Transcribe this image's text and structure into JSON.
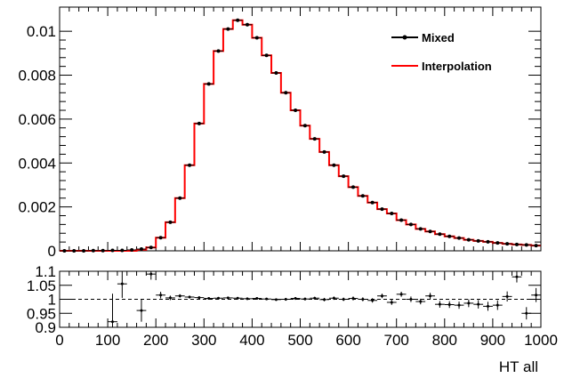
{
  "chart_data": [
    {
      "type": "line",
      "panel": "distribution",
      "xlim": [
        0,
        1000
      ],
      "ylim": [
        0,
        0.0111
      ],
      "yticks": [
        0,
        0.002,
        0.004,
        0.006,
        0.008,
        0.01
      ],
      "ytick_labels": [
        "0",
        "0.002",
        "0.004",
        "0.006",
        "0.008",
        "0.01"
      ],
      "legend_placement": "top-right",
      "legend": [
        "Mixed",
        "Interpolation"
      ],
      "bin_width": 20,
      "x": [
        10,
        30,
        50,
        70,
        90,
        110,
        130,
        150,
        170,
        190,
        210,
        230,
        250,
        270,
        290,
        310,
        330,
        350,
        370,
        390,
        410,
        430,
        450,
        470,
        490,
        510,
        530,
        550,
        570,
        590,
        610,
        630,
        650,
        670,
        690,
        710,
        730,
        750,
        770,
        790,
        810,
        830,
        850,
        870,
        890,
        910,
        930,
        950,
        970,
        990
      ],
      "series": [
        {
          "name": "Mixed",
          "color": "#000000",
          "values": [
            0,
            0,
            0,
            1e-05,
            1e-05,
            2e-05,
            2e-05,
            4e-05,
            8e-05,
            0.00015,
            0.0006,
            0.0013,
            0.0024,
            0.0039,
            0.0058,
            0.0076,
            0.0091,
            0.0101,
            0.0105,
            0.0103,
            0.0097,
            0.0089,
            0.0081,
            0.0072,
            0.0064,
            0.0057,
            0.0051,
            0.0045,
            0.0039,
            0.0034,
            0.0029,
            0.0025,
            0.0022,
            0.0019,
            0.0017,
            0.0014,
            0.0012,
            0.001,
            0.00088,
            0.00076,
            0.00066,
            0.00058,
            0.0005,
            0.00045,
            0.00041,
            0.00036,
            0.00032,
            0.00029,
            0.00027,
            0.00024
          ]
        },
        {
          "name": "Interpolation",
          "color": "#ff0000",
          "values": [
            0,
            0,
            0,
            0,
            0,
            0,
            0,
            0,
            5e-05,
            0.00015,
            0.0006,
            0.0013,
            0.0024,
            0.0039,
            0.0058,
            0.0076,
            0.0091,
            0.0101,
            0.0105,
            0.0103,
            0.0097,
            0.0089,
            0.0081,
            0.0072,
            0.0064,
            0.0057,
            0.0051,
            0.0045,
            0.0039,
            0.0034,
            0.0029,
            0.0025,
            0.0022,
            0.0019,
            0.0017,
            0.0014,
            0.0012,
            0.001,
            0.00088,
            0.00076,
            0.00066,
            0.00058,
            0.0005,
            0.00045,
            0.00041,
            0.00036,
            0.00032,
            0.00029,
            0.00027,
            0.00024
          ]
        }
      ]
    },
    {
      "type": "scatter",
      "panel": "ratio",
      "xlim": [
        0,
        1000
      ],
      "ylim": [
        0.9,
        1.1
      ],
      "yticks": [
        0.9,
        0.95,
        1,
        1.05,
        1.1
      ],
      "ytick_labels": [
        "0.9",
        "0.95",
        "1",
        "1.05",
        "1.1"
      ],
      "xticks": [
        0,
        100,
        200,
        300,
        400,
        500,
        600,
        700,
        800,
        900,
        1000
      ],
      "xtick_labels": [
        "0",
        "100",
        "200",
        "300",
        "400",
        "500",
        "600",
        "700",
        "800",
        "900",
        "1000"
      ],
      "xlabel": "HT  all",
      "reference_line": 1.0,
      "x": [
        110,
        130,
        170,
        190,
        210,
        230,
        250,
        270,
        290,
        310,
        330,
        350,
        370,
        390,
        410,
        430,
        450,
        470,
        490,
        510,
        530,
        550,
        570,
        590,
        610,
        630,
        650,
        670,
        690,
        710,
        730,
        750,
        770,
        790,
        810,
        830,
        850,
        870,
        890,
        910,
        930,
        950,
        970,
        990
      ],
      "values": [
        0.92,
        1.055,
        0.96,
        1.09,
        1.015,
        1.005,
        1.012,
        1.008,
        1.006,
        1.003,
        1.004,
        1.005,
        1.004,
        1.002,
        1.003,
        1.001,
        0.999,
        1.0,
        1.003,
        1.001,
        1.004,
        0.999,
        1.004,
        1.0,
        1.003,
        1.0,
        0.996,
        1.012,
        0.989,
        1.018,
        1.0,
        0.992,
        1.012,
        0.982,
        0.981,
        0.979,
        0.986,
        0.982,
        0.975,
        0.979,
        1.01,
        1.08,
        0.95,
        1.015
      ],
      "errors": [
        0.1,
        0.05,
        0.04,
        0.02,
        0.012,
        0.008,
        0.006,
        0.005,
        0.004,
        0.004,
        0.004,
        0.004,
        0.004,
        0.004,
        0.004,
        0.004,
        0.004,
        0.005,
        0.005,
        0.005,
        0.005,
        0.006,
        0.006,
        0.006,
        0.007,
        0.007,
        0.008,
        0.008,
        0.009,
        0.009,
        0.01,
        0.01,
        0.011,
        0.012,
        0.012,
        0.013,
        0.014,
        0.015,
        0.016,
        0.017,
        0.018,
        0.02,
        0.022,
        0.025
      ]
    }
  ]
}
